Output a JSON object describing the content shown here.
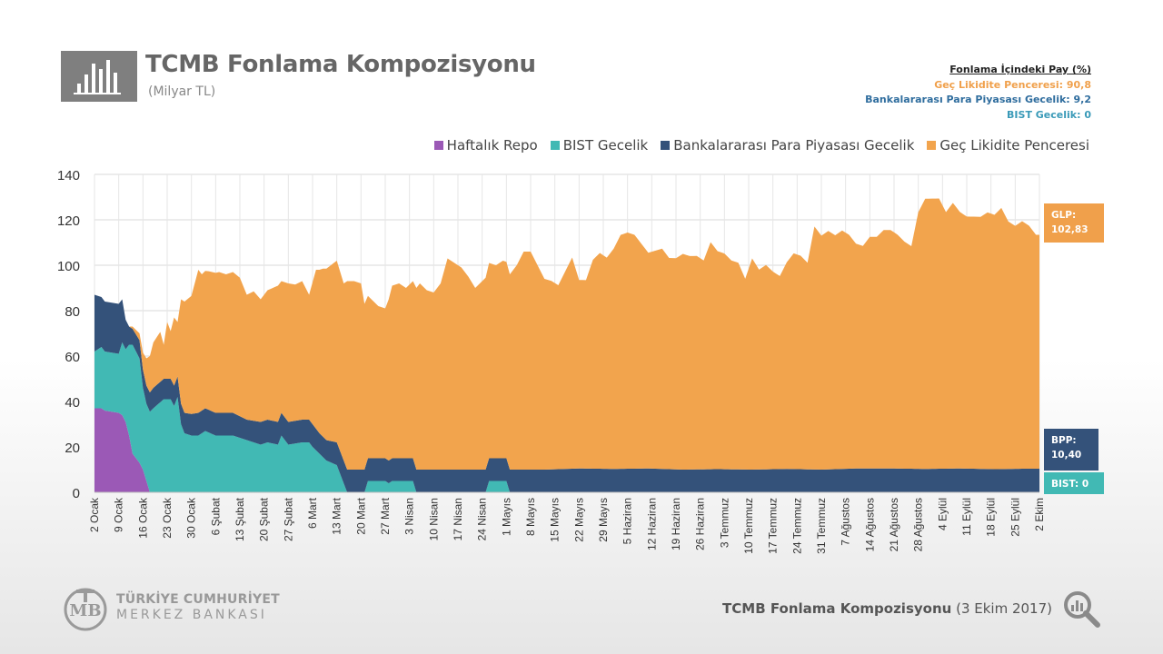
{
  "header": {
    "title": "TCMB Fonlama Kompozisyonu",
    "subtitle": "(Milyar TL)"
  },
  "share_box": {
    "heading": "Fonlama İçindeki Pay (%)",
    "glp": "Geç Likidite Penceresi: 90,8",
    "bpp": "Bankalararası Para Piyasası Gecelik: 9,2",
    "bist": "BIST Gecelik: 0"
  },
  "legend": [
    {
      "label": "Haftalık Repo",
      "color": "#9b59b6"
    },
    {
      "label": "BIST Gecelik",
      "color": "#41b9b4"
    },
    {
      "label": "Bankalararası Para Piyasası Gecelik",
      "color": "#34527a"
    },
    {
      "label": "Geç Likidite Penceresi",
      "color": "#f2a44d"
    }
  ],
  "value_tags": {
    "glp_label": "GLP:",
    "glp_value": "102,83",
    "bpp_label": "BPP:",
    "bpp_value": "10,40",
    "bist": "BIST: 0"
  },
  "footer": {
    "bank_line1": "TÜRKİYE CUMHURİYET",
    "bank_line2": "MERKEZ BANKASI",
    "caption_bold": "TCMB Fonlama Kompozisyonu",
    "caption_date": "(3 Ekim 2017)"
  },
  "chart_data": {
    "type": "area",
    "stacked": true,
    "ylim": [
      0,
      140
    ],
    "yticks": [
      0,
      20,
      40,
      60,
      80,
      100,
      120,
      140
    ],
    "grid": true,
    "legend_position": "top-right",
    "x_tick_labels": [
      "2 Ocak",
      "9 Ocak",
      "16 Ocak",
      "23 Ocak",
      "30 Ocak",
      "6 Şubat",
      "13 Şubat",
      "20 Şubat",
      "27 Şubat",
      "6 Mart",
      "13 Mart",
      "20 Mart",
      "27 Mart",
      "3 Nisan",
      "10 Nisan",
      "17 Nisan",
      "24 Nisan",
      "1 Mayıs",
      "8 Mayıs",
      "15 Mayıs",
      "22 Mayıs",
      "29 Mayıs",
      "5 Haziran",
      "12 Haziran",
      "19 Haziran",
      "26 Haziran",
      "3 Temmuz",
      "10 Temmuz",
      "17 Temmuz",
      "24 Temmuz",
      "31 Temmuz",
      "7 Ağustos",
      "14 Ağustos",
      "21 Ağustos",
      "28 Ağustos",
      "4 Eylül",
      "11 Eylül",
      "18 Eylül",
      "25 Eylül",
      "2 Ekim"
    ],
    "x_day_start": 0,
    "x_day_end": 273,
    "series": [
      {
        "name": "Haftalık Repo",
        "color": "#9b59b6",
        "points": [
          [
            0,
            37
          ],
          [
            2,
            37
          ],
          [
            3,
            36
          ],
          [
            5,
            35.5
          ],
          [
            7,
            35
          ],
          [
            8,
            34
          ],
          [
            9,
            31
          ],
          [
            10,
            25
          ],
          [
            11,
            17
          ],
          [
            13,
            13
          ],
          [
            14,
            10
          ],
          [
            15,
            5
          ],
          [
            16,
            0
          ],
          [
            273,
            0
          ]
        ]
      },
      {
        "name": "BIST Gecelik",
        "color": "#41b9b4",
        "points": [
          [
            0,
            25
          ],
          [
            2,
            27
          ],
          [
            3,
            26
          ],
          [
            5,
            26
          ],
          [
            7,
            26
          ],
          [
            8,
            32
          ],
          [
            9,
            32
          ],
          [
            10,
            40
          ],
          [
            11,
            48
          ],
          [
            13,
            46
          ],
          [
            14,
            36
          ],
          [
            15,
            34
          ],
          [
            17,
            37
          ],
          [
            20,
            41
          ],
          [
            22,
            41
          ],
          [
            23,
            38
          ],
          [
            24,
            42
          ],
          [
            25,
            30
          ],
          [
            26,
            26
          ],
          [
            28,
            25
          ],
          [
            30,
            25
          ],
          [
            32,
            27
          ],
          [
            35,
            25
          ],
          [
            40,
            25
          ],
          [
            42,
            24
          ],
          [
            44,
            23
          ],
          [
            46,
            22
          ],
          [
            48,
            21
          ],
          [
            50,
            22
          ],
          [
            53,
            21
          ],
          [
            54,
            25
          ],
          [
            56,
            21
          ],
          [
            60,
            22
          ],
          [
            62,
            22
          ],
          [
            63,
            20
          ],
          [
            65,
            17
          ],
          [
            67,
            14
          ],
          [
            70,
            12
          ],
          [
            73,
            0
          ],
          [
            73,
            0
          ],
          [
            78,
            0
          ],
          [
            79,
            5
          ],
          [
            84,
            5
          ],
          [
            85,
            4
          ],
          [
            86,
            5
          ],
          [
            92,
            5
          ],
          [
            93,
            0
          ],
          [
            113,
            0
          ],
          [
            114,
            5
          ],
          [
            119,
            5
          ],
          [
            120,
            0
          ],
          [
            273,
            0
          ]
        ]
      },
      {
        "name": "Bankalararası Para Piyasası Gecelik",
        "color": "#34527a",
        "points": [
          [
            0,
            25
          ],
          [
            2,
            22
          ],
          [
            5,
            22
          ],
          [
            7,
            22
          ],
          [
            8,
            19
          ],
          [
            9,
            13
          ],
          [
            10,
            8
          ],
          [
            11,
            7
          ],
          [
            13,
            8
          ],
          [
            15,
            8
          ],
          [
            17,
            9
          ],
          [
            20,
            9
          ],
          [
            23,
            9
          ],
          [
            25,
            9
          ],
          [
            26,
            9
          ],
          [
            30,
            10
          ],
          [
            35,
            10
          ],
          [
            40,
            10
          ],
          [
            44,
            9
          ],
          [
            48,
            10
          ],
          [
            52,
            10
          ],
          [
            56,
            10
          ],
          [
            60,
            10
          ],
          [
            63,
            10
          ],
          [
            65,
            9
          ],
          [
            67,
            9
          ],
          [
            70,
            10
          ],
          [
            73,
            10
          ],
          [
            78,
            10
          ],
          [
            79,
            10
          ],
          [
            86,
            10
          ],
          [
            92,
            10
          ],
          [
            93,
            10
          ],
          [
            100,
            10
          ],
          [
            105,
            10
          ],
          [
            110,
            10
          ],
          [
            113,
            10
          ],
          [
            114,
            10
          ],
          [
            119,
            10
          ],
          [
            120,
            10
          ],
          [
            130,
            10
          ],
          [
            140,
            10.5
          ],
          [
            150,
            10.3
          ],
          [
            160,
            10.5
          ],
          [
            170,
            10
          ],
          [
            180,
            10.2
          ],
          [
            190,
            10
          ],
          [
            200,
            10.3
          ],
          [
            210,
            10
          ],
          [
            220,
            10.5
          ],
          [
            230,
            10.5
          ],
          [
            240,
            10.3
          ],
          [
            250,
            10.5
          ],
          [
            260,
            10.2
          ],
          [
            268,
            10.4
          ],
          [
            273,
            10.4
          ]
        ]
      },
      {
        "name": "Geç Likidite Penceresi",
        "color": "#f2a44d",
        "points": [
          [
            0,
            0
          ],
          [
            10,
            0
          ],
          [
            11,
            1
          ],
          [
            13,
            3
          ],
          [
            15,
            12
          ],
          [
            17,
            20
          ],
          [
            19,
            22
          ],
          [
            20,
            15
          ],
          [
            21,
            25
          ],
          [
            22,
            21
          ],
          [
            23,
            30
          ],
          [
            24,
            24
          ],
          [
            25,
            46
          ],
          [
            26,
            49
          ],
          [
            28,
            52
          ],
          [
            30,
            63
          ],
          [
            31,
            60
          ],
          [
            33,
            61
          ],
          [
            36,
            62
          ],
          [
            38,
            61
          ],
          [
            40,
            62
          ],
          [
            42,
            61
          ],
          [
            44,
            55
          ],
          [
            46,
            57
          ],
          [
            48,
            54
          ],
          [
            50,
            57
          ],
          [
            52,
            59
          ],
          [
            53,
            60
          ],
          [
            54,
            58
          ],
          [
            56,
            61
          ],
          [
            58,
            60
          ],
          [
            60,
            61
          ],
          [
            62,
            55
          ],
          [
            64,
            70
          ],
          [
            66,
            74
          ],
          [
            68,
            77
          ],
          [
            70,
            80
          ],
          [
            72,
            78
          ],
          [
            73,
            83
          ],
          [
            75,
            83
          ],
          [
            77,
            82
          ],
          [
            78,
            73
          ],
          [
            80,
            70
          ],
          [
            82,
            67
          ],
          [
            84,
            66
          ],
          [
            86,
            76
          ],
          [
            88,
            77
          ],
          [
            90,
            75
          ],
          [
            92,
            78
          ],
          [
            94,
            82
          ],
          [
            96,
            79
          ],
          [
            98,
            78
          ],
          [
            100,
            82
          ],
          [
            102,
            93
          ],
          [
            104,
            91
          ],
          [
            106,
            89
          ],
          [
            108,
            85
          ],
          [
            110,
            80
          ],
          [
            112,
            83
          ],
          [
            114,
            86
          ],
          [
            116,
            85
          ],
          [
            118,
            87
          ],
          [
            120,
            86
          ],
          [
            122,
            90
          ],
          [
            124,
            96
          ],
          [
            126,
            96
          ],
          [
            128,
            90
          ],
          [
            130,
            84
          ],
          [
            132,
            83
          ],
          [
            134,
            81
          ],
          [
            136,
            87
          ],
          [
            138,
            93
          ],
          [
            140,
            83
          ],
          [
            142,
            83
          ],
          [
            144,
            92
          ],
          [
            146,
            95
          ],
          [
            148,
            93
          ],
          [
            150,
            97
          ],
          [
            152,
            103
          ],
          [
            154,
            104
          ],
          [
            156,
            103
          ],
          [
            158,
            99
          ],
          [
            160,
            95
          ],
          [
            162,
            96
          ],
          [
            164,
            97
          ],
          [
            166,
            93
          ],
          [
            168,
            93
          ],
          [
            170,
            95
          ],
          [
            172,
            94
          ],
          [
            174,
            94
          ],
          [
            176,
            92
          ],
          [
            178,
            100
          ],
          [
            180,
            96
          ],
          [
            182,
            95
          ],
          [
            184,
            92
          ],
          [
            186,
            91
          ],
          [
            188,
            84
          ],
          [
            190,
            93
          ],
          [
            192,
            88
          ],
          [
            194,
            90
          ],
          [
            196,
            87
          ],
          [
            198,
            85
          ],
          [
            200,
            91
          ],
          [
            202,
            95
          ],
          [
            204,
            94
          ],
          [
            206,
            91
          ],
          [
            208,
            107
          ],
          [
            210,
            103
          ],
          [
            212,
            105
          ],
          [
            214,
            103
          ],
          [
            216,
            105
          ],
          [
            218,
            103
          ],
          [
            220,
            99
          ],
          [
            222,
            98
          ],
          [
            224,
            102
          ],
          [
            226,
            102
          ],
          [
            228,
            105
          ],
          [
            230,
            105
          ],
          [
            232,
            103
          ],
          [
            234,
            100
          ],
          [
            236,
            98
          ],
          [
            238,
            113
          ],
          [
            240,
            119
          ],
          [
            242,
            119
          ],
          [
            244,
            119
          ],
          [
            246,
            113
          ],
          [
            248,
            117
          ],
          [
            250,
            113
          ],
          [
            252,
            111
          ],
          [
            254,
            111
          ],
          [
            256,
            111
          ],
          [
            258,
            113
          ],
          [
            260,
            112
          ],
          [
            262,
            115
          ],
          [
            264,
            109
          ],
          [
            266,
            107
          ],
          [
            268,
            109
          ],
          [
            270,
            107
          ],
          [
            272,
            103
          ],
          [
            273,
            103
          ]
        ]
      }
    ]
  }
}
